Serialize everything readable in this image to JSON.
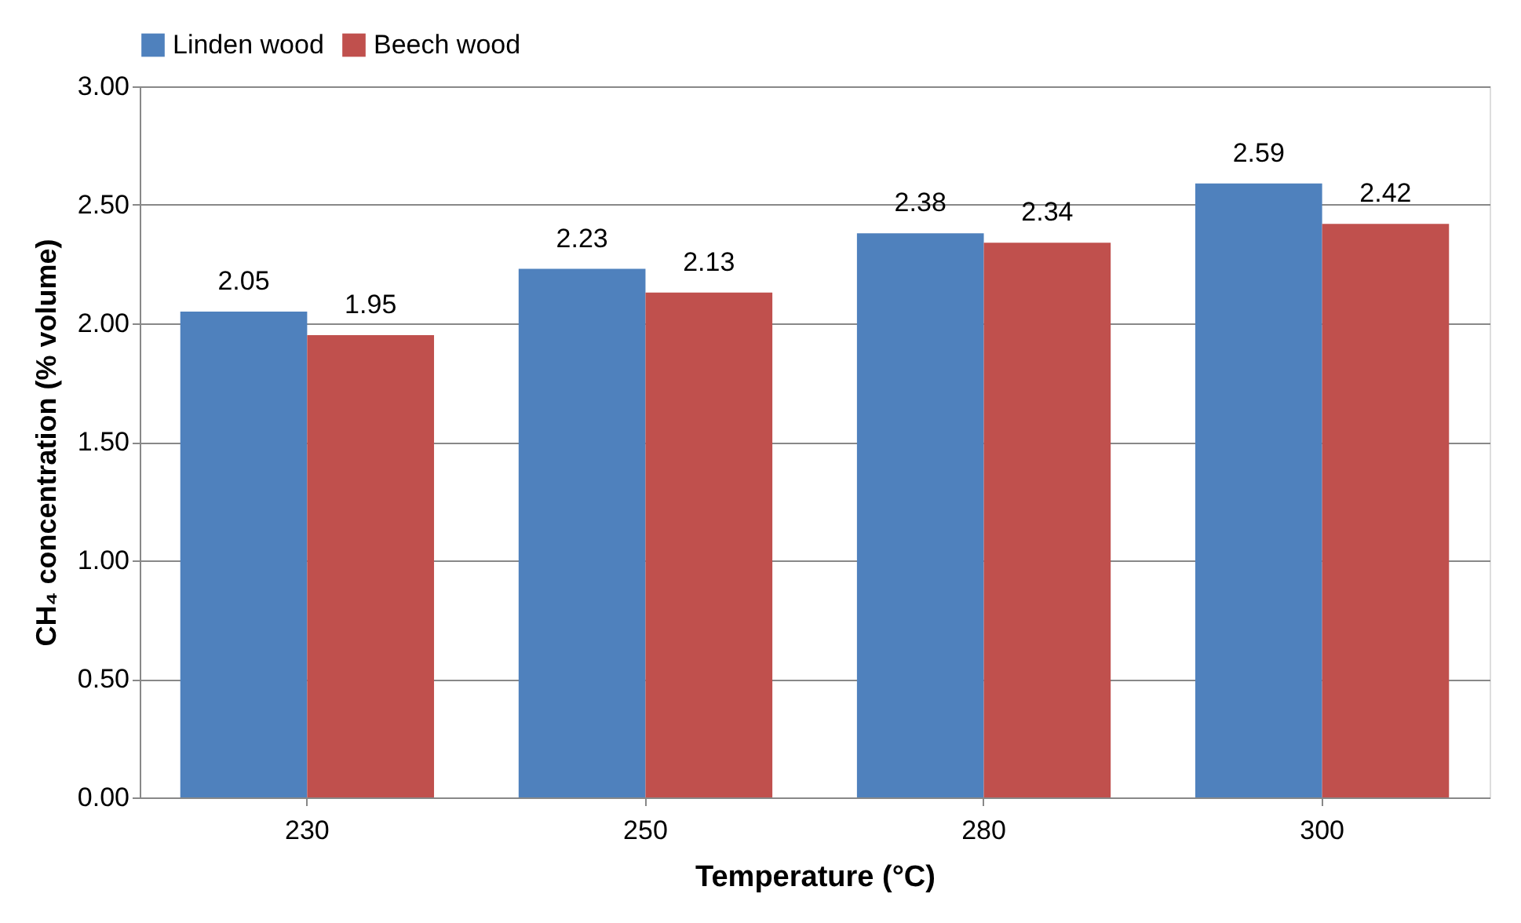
{
  "chart_data": {
    "type": "bar",
    "xlabel": "Temperature (°C)",
    "ylabel": "CH₄ concentration (% volume)",
    "categories": [
      "230",
      "250",
      "280",
      "300"
    ],
    "series": [
      {
        "name": "Linden wood",
        "color": "#4f81bd",
        "values": [
          2.05,
          2.23,
          2.38,
          2.59
        ]
      },
      {
        "name": "Beech wood",
        "color": "#c0504d",
        "values": [
          1.95,
          2.13,
          2.34,
          2.42
        ]
      }
    ],
    "ylim": [
      0,
      3
    ],
    "yticks": [
      {
        "value": 0,
        "label": "0.00"
      },
      {
        "value": 0.5,
        "label": "0.50"
      },
      {
        "value": 1,
        "label": "1.00"
      },
      {
        "value": 1.5,
        "label": "1.50"
      },
      {
        "value": 2,
        "label": "2.00"
      },
      {
        "value": 2.5,
        "label": "2.50"
      },
      {
        "value": 3,
        "label": "3.00"
      }
    ],
    "grid": "y",
    "legend": "top",
    "data_labels": true
  }
}
